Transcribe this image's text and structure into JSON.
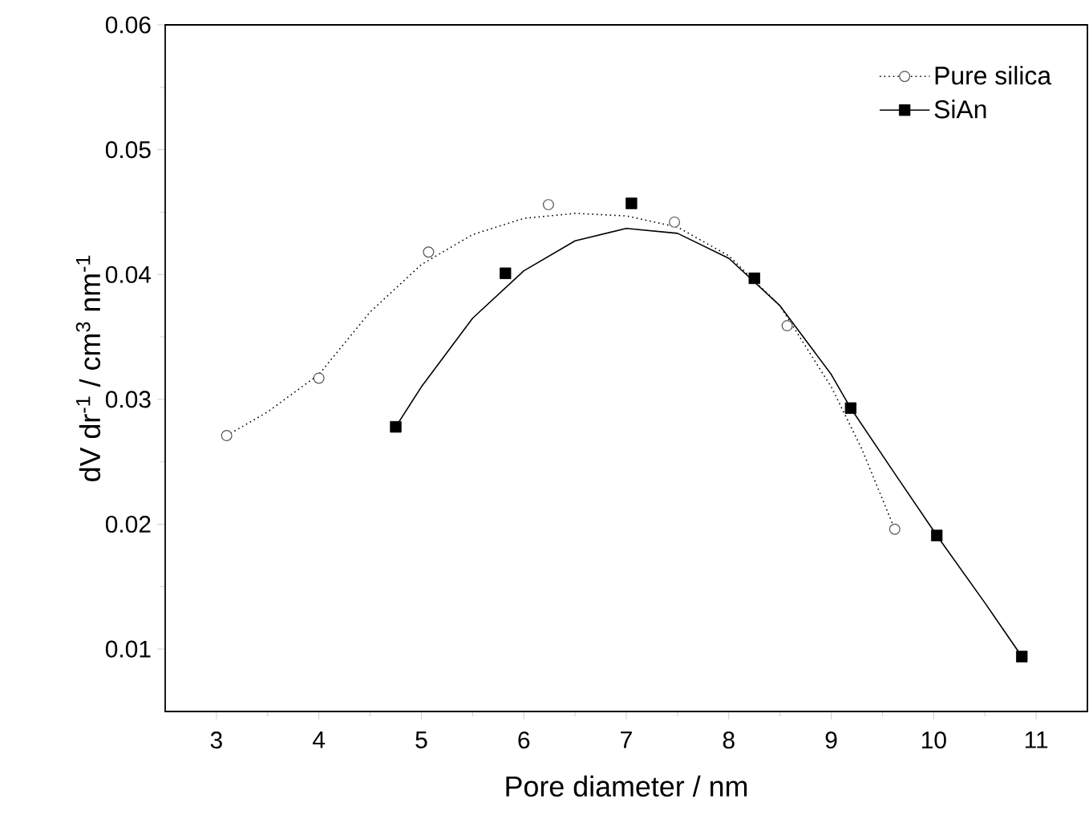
{
  "chart_data": {
    "type": "scatter",
    "xlabel": "Pore diameter / nm",
    "ylabel": "dV dr$^{-1}$ / cm$^{3}$ nm$^{-1}$",
    "xlim": [
      2.5,
      11.5
    ],
    "ylim": [
      0.005,
      0.06
    ],
    "xticks": [
      3,
      4,
      5,
      6,
      7,
      8,
      9,
      10,
      11
    ],
    "yticks": [
      0.01,
      0.02,
      0.03,
      0.04,
      0.05,
      0.06
    ],
    "legend": "top right",
    "grid": false,
    "series": [
      {
        "type": "line",
        "line_style": "dotted",
        "color": "#000000",
        "x": [
          3.1,
          3.5,
          4.0,
          4.5,
          5.0,
          5.5,
          6.0,
          6.5,
          7.0,
          7.5,
          8.0,
          8.5,
          9.0,
          9.3,
          9.62
        ],
        "values": [
          0.0271,
          0.029,
          0.032,
          0.037,
          0.0408,
          0.0432,
          0.0445,
          0.0449,
          0.0447,
          0.0438,
          0.0415,
          0.0375,
          0.031,
          0.026,
          0.0196
        ]
      },
      {
        "type": "line",
        "line_style": "solid",
        "color": "#000000",
        "x": [
          4.75,
          5.0,
          5.5,
          6.0,
          6.5,
          7.0,
          7.5,
          8.0,
          8.5,
          9.0,
          9.19,
          9.6,
          10.03,
          10.5,
          10.86
        ],
        "values": [
          0.0278,
          0.031,
          0.0365,
          0.0403,
          0.0427,
          0.0437,
          0.0433,
          0.0413,
          0.0375,
          0.032,
          0.0293,
          0.0243,
          0.0191,
          0.0137,
          0.0094
        ]
      },
      {
        "type": "scatter",
        "name": "Pure silica",
        "marker": "circle",
        "line_style": "dotted",
        "color": "#555555",
        "x": [
          3.1,
          4.0,
          5.07,
          6.24,
          7.47,
          8.57,
          9.62
        ],
        "values": [
          0.0271,
          0.0317,
          0.0418,
          0.0456,
          0.0442,
          0.0359,
          0.0196
        ]
      },
      {
        "type": "scatter",
        "name": "SiAn",
        "marker": "square",
        "line_style": "solid",
        "color": "#000000",
        "x": [
          4.75,
          5.82,
          7.05,
          8.25,
          9.19,
          10.03,
          10.86
        ],
        "values": [
          0.0278,
          0.0401,
          0.0457,
          0.0397,
          0.0293,
          0.0191,
          0.0094
        ]
      }
    ]
  }
}
